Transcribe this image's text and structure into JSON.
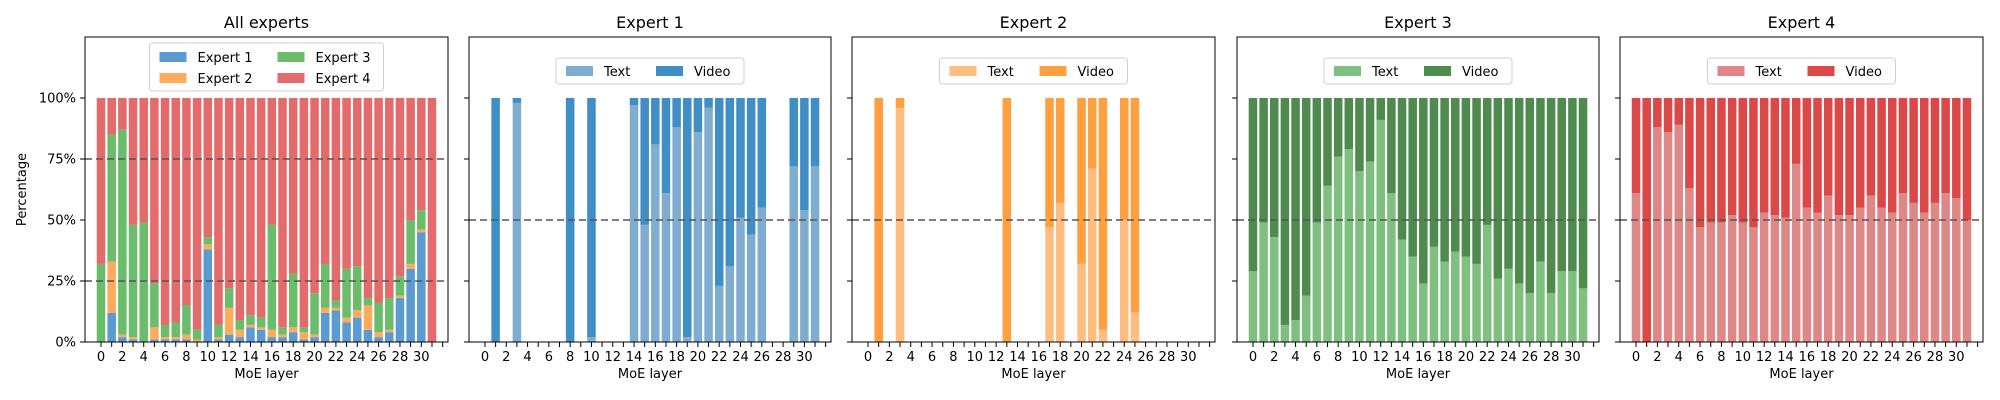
{
  "layers": [
    0,
    1,
    2,
    3,
    4,
    5,
    6,
    7,
    8,
    9,
    10,
    11,
    12,
    13,
    14,
    15,
    16,
    17,
    18,
    19,
    20,
    21,
    22,
    23,
    24,
    25,
    26,
    27,
    28,
    29,
    30,
    31
  ],
  "x_tick_labels": [
    "0",
    "2",
    "4",
    "6",
    "8",
    "10",
    "12",
    "14",
    "16",
    "18",
    "20",
    "22",
    "24",
    "26",
    "28",
    "30"
  ],
  "y_tick_labels": [
    "0%",
    "25%",
    "50%",
    "75%",
    "100%"
  ],
  "colors": {
    "expert1": "#3f8fc6",
    "expert1_light": "#7fadcf",
    "expert2": "#ff9f40",
    "expert2_light": "#ffbe80",
    "expert3": "#4f8a4f",
    "expert3_light": "#7fbf7f",
    "expert4": "#dc4848",
    "expert4_light": "#df8686",
    "all_e1": "#5b9bd1",
    "all_e2": "#ffab5c",
    "all_e3": "#6bbd6b",
    "all_e4": "#e36b6b"
  },
  "chart_data": [
    {
      "type": "bar",
      "stacked": true,
      "title": "All experts",
      "xlabel": "MoE layer",
      "ylabel": "Percentage",
      "ylim": [
        0,
        100
      ],
      "grid_lines": [
        25,
        75
      ],
      "legend": "top-center",
      "legend_columns": 2,
      "series": [
        {
          "name": "Expert 1",
          "color_key": "all_e1",
          "values": [
            0,
            12,
            2,
            1,
            0,
            1,
            1,
            1,
            1,
            0,
            38,
            1,
            3,
            2,
            6,
            5,
            2,
            2,
            4,
            1,
            2,
            12,
            13,
            8,
            10,
            5,
            2,
            4,
            18,
            30,
            45,
            0
          ]
        },
        {
          "name": "Expert 2",
          "color_key": "all_e2",
          "values": [
            0,
            21,
            1,
            1,
            0,
            5,
            1,
            1,
            2,
            1,
            2,
            1,
            11,
            3,
            1,
            1,
            3,
            1,
            2,
            3,
            1,
            2,
            1,
            2,
            3,
            10,
            2,
            1,
            1,
            2,
            1,
            0
          ]
        },
        {
          "name": "Expert 3",
          "color_key": "all_e3",
          "values": [
            32,
            52,
            84,
            46,
            49,
            18,
            5,
            6,
            12,
            4,
            3,
            5,
            8,
            4,
            4,
            4,
            43,
            3,
            22,
            2,
            17,
            18,
            3,
            20,
            18,
            3,
            12,
            13,
            8,
            18,
            8,
            0
          ]
        },
        {
          "name": "Expert 4",
          "color_key": "all_e4",
          "values": [
            68,
            15,
            13,
            52,
            51,
            76,
            93,
            92,
            85,
            95,
            57,
            93,
            78,
            91,
            89,
            90,
            52,
            94,
            72,
            94,
            80,
            68,
            83,
            70,
            69,
            82,
            84,
            82,
            73,
            50,
            46,
            100
          ]
        }
      ]
    },
    {
      "type": "bar",
      "stacked": true,
      "title": "Expert 1",
      "xlabel": "MoE layer",
      "ylim": [
        0,
        100
      ],
      "grid_lines": [
        50
      ],
      "legend": "top-center",
      "legend_columns": 2,
      "series": [
        {
          "name": "Text",
          "color_key": "expert1_light",
          "values": [
            0,
            0,
            0,
            98,
            0,
            0,
            0,
            0,
            0,
            0,
            2,
            0,
            0,
            0,
            97,
            48,
            81,
            61,
            88,
            2,
            86,
            96,
            23,
            31,
            51,
            44,
            55,
            0,
            0,
            72,
            54,
            72
          ]
        },
        {
          "name": "Video",
          "color_key": "expert1",
          "values": [
            0,
            100,
            0,
            2,
            0,
            0,
            0,
            0,
            100,
            0,
            98,
            0,
            0,
            0,
            3,
            52,
            19,
            39,
            12,
            98,
            14,
            4,
            77,
            69,
            49,
            56,
            45,
            0,
            0,
            28,
            46,
            28
          ]
        }
      ]
    },
    {
      "type": "bar",
      "stacked": true,
      "title": "Expert 2",
      "xlabel": "MoE layer",
      "ylim": [
        0,
        100
      ],
      "grid_lines": [
        50
      ],
      "legend": "top-center",
      "legend_columns": 2,
      "series": [
        {
          "name": "Text",
          "color_key": "expert2_light",
          "values": [
            0,
            0,
            0,
            96,
            0,
            0,
            0,
            0,
            0,
            0,
            0,
            0,
            0,
            0,
            0,
            0,
            0,
            47,
            57,
            0,
            32,
            71,
            5,
            0,
            50,
            12,
            0,
            0,
            0,
            0,
            0,
            0
          ]
        },
        {
          "name": "Video",
          "color_key": "expert2",
          "values": [
            0,
            100,
            0,
            4,
            0,
            0,
            0,
            0,
            0,
            0,
            0,
            0,
            0,
            100,
            0,
            0,
            0,
            53,
            43,
            0,
            68,
            29,
            95,
            0,
            50,
            88,
            0,
            0,
            0,
            0,
            0,
            0
          ]
        }
      ]
    },
    {
      "type": "bar",
      "stacked": true,
      "title": "Expert 3",
      "xlabel": "MoE layer",
      "ylim": [
        0,
        100
      ],
      "grid_lines": [
        50
      ],
      "legend": "top-center",
      "legend_columns": 2,
      "series": [
        {
          "name": "Text",
          "color_key": "expert3_light",
          "values": [
            29,
            49,
            43,
            7,
            9,
            19,
            49,
            64,
            76,
            79,
            70,
            74,
            91,
            61,
            42,
            35,
            24,
            39,
            33,
            37,
            35,
            32,
            48,
            26,
            30,
            24,
            20,
            33,
            20,
            29,
            29,
            22
          ]
        },
        {
          "name": "Video",
          "color_key": "expert3",
          "values": [
            71,
            51,
            57,
            93,
            91,
            81,
            51,
            36,
            24,
            21,
            30,
            26,
            9,
            39,
            58,
            65,
            76,
            61,
            67,
            63,
            65,
            68,
            52,
            74,
            70,
            76,
            80,
            67,
            80,
            71,
            71,
            78
          ]
        }
      ]
    },
    {
      "type": "bar",
      "stacked": true,
      "title": "Expert 4",
      "xlabel": "MoE layer",
      "ylim": [
        0,
        100
      ],
      "grid_lines": [
        50
      ],
      "legend": "top-center",
      "legend_columns": 2,
      "series": [
        {
          "name": "Text",
          "color_key": "expert4_light",
          "values": [
            61,
            0,
            88,
            86,
            89,
            63,
            47,
            49,
            49,
            52,
            49,
            47,
            53,
            52,
            51,
            73,
            55,
            53,
            60,
            52,
            52,
            55,
            60,
            55,
            53,
            61,
            57,
            53,
            57,
            61,
            59,
            50
          ]
        },
        {
          "name": "Video",
          "color_key": "expert4",
          "values": [
            39,
            100,
            12,
            14,
            11,
            37,
            53,
            51,
            51,
            48,
            51,
            53,
            47,
            48,
            49,
            27,
            45,
            47,
            40,
            48,
            48,
            45,
            40,
            45,
            47,
            39,
            43,
            47,
            43,
            39,
            41,
            50
          ]
        }
      ]
    }
  ]
}
